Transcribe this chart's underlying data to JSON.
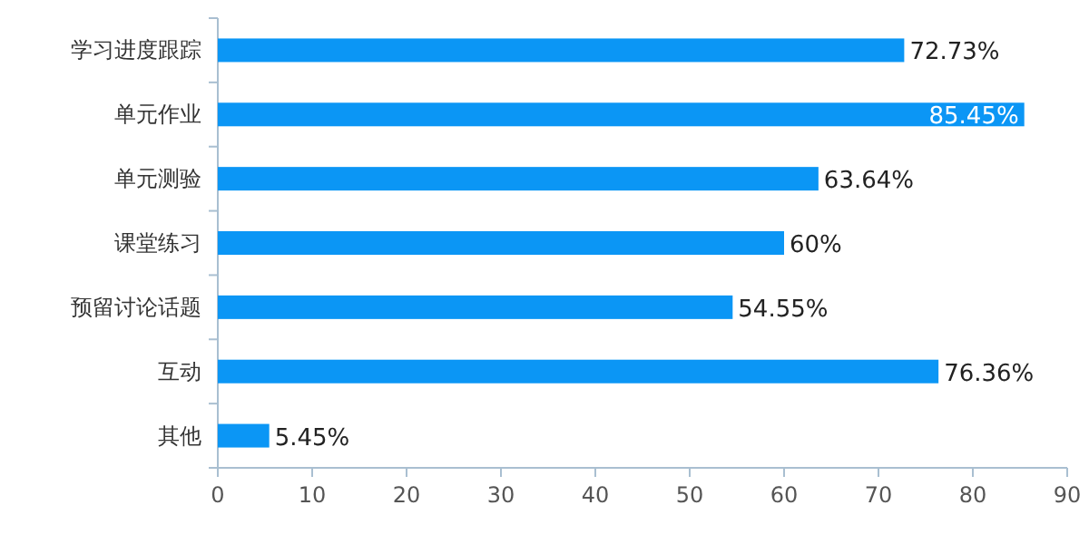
{
  "chart_data": {
    "type": "bar",
    "orientation": "horizontal",
    "categories": [
      "学习进度跟踪",
      "单元作业",
      "单元测验",
      "课堂练习",
      "预留讨论话题",
      "互动",
      "其他"
    ],
    "values": [
      72.73,
      85.45,
      63.64,
      60,
      54.55,
      76.36,
      5.45
    ],
    "value_labels": [
      "72.73%",
      "85.45%",
      "63.64%",
      "60%",
      "54.55%",
      "76.36%",
      "5.45%"
    ],
    "color": "#0b96f5",
    "xlim": [
      0,
      90
    ],
    "xticks": [
      0,
      10,
      20,
      30,
      40,
      50,
      60,
      70,
      80,
      90
    ]
  }
}
